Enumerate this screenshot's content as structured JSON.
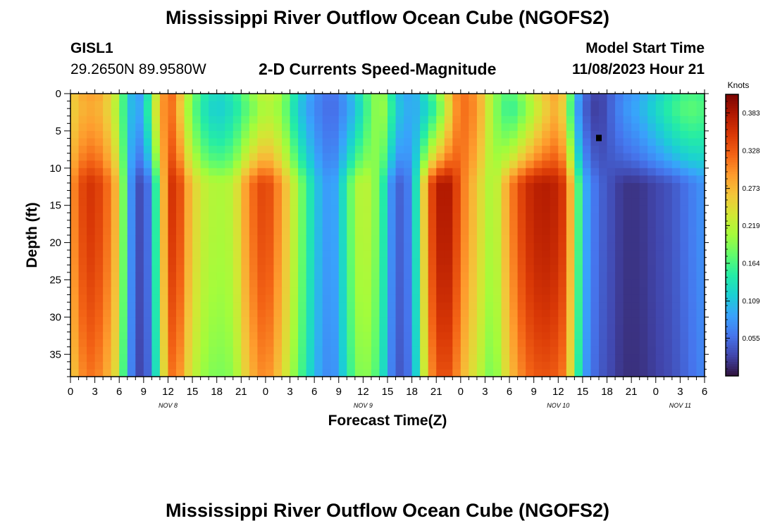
{
  "page": {
    "title": "Mississippi River Outflow Ocean Cube (NGOFS2)",
    "footer_title": "Mississippi River Outflow Ocean Cube (NGOFS2)",
    "station_id": "GISL1",
    "station_coords": "29.2650N  89.9580W",
    "model_start_label": "Model Start Time",
    "model_start_value": "11/08/2023 Hour 21"
  },
  "colors": {
    "background": "#ffffff",
    "scale": [
      "#30123b",
      "#4145ab",
      "#4675ed",
      "#39a2fc",
      "#1bcfd4",
      "#24eca6",
      "#61fc6c",
      "#a4fc3b",
      "#d1e834",
      "#f3c63a",
      "#fe9b2d",
      "#f36315",
      "#d93806",
      "#b11901",
      "#7a0402"
    ]
  },
  "chart_data": {
    "type": "heatmap",
    "title": "2-D Currents Speed-Magnitude",
    "xlabel": "Forecast Time(Z)",
    "ylabel": "Depth (ft)",
    "colorbar_label": "Knots",
    "colorbar_ticks": [
      "0.383",
      "0.328",
      "0.273",
      "0.219",
      "0.164",
      "0.109",
      "0.055"
    ],
    "colorbar_values": [
      0.383,
      0.328,
      0.273,
      0.219,
      0.164,
      0.109,
      0.055
    ],
    "value_range": [
      0.0,
      0.41
    ],
    "xlim_hours": [
      0,
      78
    ],
    "ylim": [
      0,
      38
    ],
    "y_inverted": true,
    "y_ticks": [
      "0",
      "5",
      "10",
      "15",
      "20",
      "25",
      "30",
      "35"
    ],
    "y_tick_values": [
      0,
      5,
      10,
      15,
      20,
      25,
      30,
      35
    ],
    "x_tick_labels": [
      "0",
      "3",
      "6",
      "9",
      "12",
      "15",
      "18",
      "21",
      "0",
      "3",
      "6",
      "9",
      "12",
      "15",
      "18",
      "21",
      "0",
      "3",
      "6",
      "9",
      "12",
      "15",
      "18",
      "21",
      "0",
      "3",
      "6"
    ],
    "date_labels": [
      {
        "text": "NOV 8",
        "hour": 12
      },
      {
        "text": "NOV 9",
        "hour": 36
      },
      {
        "text": "NOV 10",
        "hour": 60
      },
      {
        "text": "NOV 11",
        "hour": 75
      }
    ],
    "marker": {
      "hour": 65,
      "depth": 6
    },
    "upper_layer_depth": 9,
    "columns": {
      "hours": [
        0,
        2,
        4,
        6,
        7,
        8,
        9,
        10,
        11,
        12,
        13,
        14,
        16,
        18,
        20,
        22,
        24,
        26,
        28,
        30,
        31,
        32,
        33,
        34,
        35,
        36,
        38,
        39,
        40,
        42,
        43,
        44,
        45,
        46,
        47,
        48,
        50,
        52,
        54,
        56,
        58,
        60,
        61,
        62,
        63,
        64,
        65,
        66,
        67,
        68,
        70,
        72,
        74,
        76,
        78
      ],
      "surface": [
        0.25,
        0.28,
        0.27,
        0.2,
        0.12,
        0.09,
        0.1,
        0.2,
        0.28,
        0.32,
        0.3,
        0.22,
        0.14,
        0.11,
        0.13,
        0.17,
        0.21,
        0.19,
        0.11,
        0.07,
        0.06,
        0.05,
        0.06,
        0.08,
        0.1,
        0.14,
        0.21,
        0.19,
        0.12,
        0.09,
        0.1,
        0.12,
        0.15,
        0.2,
        0.27,
        0.32,
        0.3,
        0.2,
        0.14,
        0.18,
        0.24,
        0.28,
        0.22,
        0.1,
        0.05,
        0.03,
        0.02,
        0.04,
        0.06,
        0.08,
        0.1,
        0.13,
        0.16,
        0.18,
        0.17
      ],
      "deep": [
        0.29,
        0.36,
        0.34,
        0.26,
        0.11,
        0.04,
        0.03,
        0.08,
        0.22,
        0.34,
        0.37,
        0.3,
        0.23,
        0.21,
        0.22,
        0.31,
        0.35,
        0.29,
        0.2,
        0.12,
        0.09,
        0.08,
        0.1,
        0.16,
        0.2,
        0.23,
        0.18,
        0.11,
        0.04,
        0.07,
        0.2,
        0.32,
        0.37,
        0.39,
        0.37,
        0.32,
        0.26,
        0.2,
        0.3,
        0.36,
        0.38,
        0.37,
        0.34,
        0.22,
        0.11,
        0.07,
        0.05,
        0.04,
        0.03,
        0.02,
        0.02,
        0.03,
        0.04,
        0.06,
        0.08
      ]
    }
  }
}
